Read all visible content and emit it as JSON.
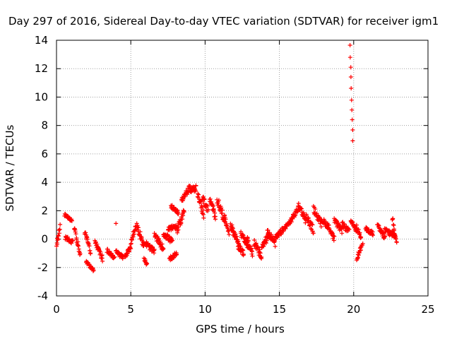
{
  "chart_data": {
    "type": "scatter",
    "title": "Day 297 of 2016, Sidereal Day-to-day VTEC variation (SDTVAR) for receiver igm1",
    "xlabel": "GPS time / hours",
    "ylabel": "SDTVAR / TECUs",
    "xlim": [
      0,
      25
    ],
    "ylim": [
      -4,
      14
    ],
    "xticks": [
      0,
      5,
      10,
      15,
      20,
      25
    ],
    "yticks": [
      -4,
      -2,
      0,
      2,
      4,
      6,
      8,
      10,
      12,
      14
    ],
    "grid": true,
    "marker": "plus",
    "color": "#ff0000",
    "series": [
      {
        "name": "SDTVAR",
        "segments": [
          {
            "t0": 0.0,
            "t1": 0.25,
            "v0": -0.4,
            "v1": 0.9,
            "spread": 0.4
          },
          {
            "t0": 0.55,
            "t1": 1.05,
            "v0": 1.7,
            "v1": 1.3,
            "spread": 0.2
          },
          {
            "t0": 0.6,
            "t1": 1.1,
            "v0": 0.1,
            "v1": -0.2,
            "spread": 0.3
          },
          {
            "t0": 1.2,
            "t1": 1.6,
            "v0": 0.8,
            "v1": -1.2,
            "spread": 0.4
          },
          {
            "t0": 1.9,
            "t1": 2.3,
            "v0": 0.6,
            "v1": -1.0,
            "spread": 0.4
          },
          {
            "t0": 2.0,
            "t1": 2.5,
            "v0": -1.6,
            "v1": -2.2,
            "spread": 0.2
          },
          {
            "t0": 2.6,
            "t1": 3.1,
            "v0": -0.2,
            "v1": -1.4,
            "spread": 0.4
          },
          {
            "t0": 3.4,
            "t1": 3.9,
            "v0": -0.8,
            "v1": -1.3,
            "spread": 0.3
          },
          {
            "t0": 4.0,
            "t1": 4.5,
            "v0": -0.9,
            "v1": -1.3,
            "spread": 0.3
          },
          {
            "t0": 4.6,
            "t1": 5.0,
            "v0": -1.2,
            "v1": -0.6,
            "spread": 0.3
          },
          {
            "t0": 5.0,
            "t1": 5.35,
            "v0": -0.2,
            "v1": 0.9,
            "spread": 0.4
          },
          {
            "t0": 5.4,
            "t1": 5.9,
            "v0": 1.0,
            "v1": -0.5,
            "spread": 0.5
          },
          {
            "t0": 5.9,
            "t1": 6.1,
            "v0": -1.4,
            "v1": -1.8,
            "spread": 0.2
          },
          {
            "t0": 6.0,
            "t1": 6.6,
            "v0": -0.3,
            "v1": -0.9,
            "spread": 0.4
          },
          {
            "t0": 6.6,
            "t1": 7.2,
            "v0": 0.3,
            "v1": -0.7,
            "spread": 0.4
          },
          {
            "t0": 7.2,
            "t1": 7.8,
            "v0": 0.4,
            "v1": -0.2,
            "spread": 0.4
          },
          {
            "t0": 7.5,
            "t1": 8.1,
            "v0": 0.7,
            "v1": 0.9,
            "spread": 0.3
          },
          {
            "t0": 7.6,
            "t1": 8.1,
            "v0": -1.4,
            "v1": -1.0,
            "spread": 0.3
          },
          {
            "t0": 7.7,
            "t1": 8.2,
            "v0": 2.3,
            "v1": 1.9,
            "spread": 0.3
          },
          {
            "t0": 8.1,
            "t1": 8.6,
            "v0": 0.5,
            "v1": 2.0,
            "spread": 0.5
          },
          {
            "t0": 8.4,
            "t1": 9.0,
            "v0": 2.8,
            "v1": 3.6,
            "spread": 0.5
          },
          {
            "t0": 9.0,
            "t1": 9.4,
            "v0": 3.4,
            "v1": 3.6,
            "spread": 0.4
          },
          {
            "t0": 9.5,
            "t1": 9.9,
            "v0": 3.2,
            "v1": 1.7,
            "spread": 0.5
          },
          {
            "t0": 9.8,
            "t1": 10.2,
            "v0": 3.0,
            "v1": 2.0,
            "spread": 0.5
          },
          {
            "t0": 10.3,
            "t1": 10.7,
            "v0": 2.8,
            "v1": 1.6,
            "spread": 0.5
          },
          {
            "t0": 10.8,
            "t1": 11.3,
            "v0": 2.8,
            "v1": 1.4,
            "spread": 0.6
          },
          {
            "t0": 11.3,
            "t1": 11.6,
            "v0": 1.5,
            "v1": 0.5,
            "spread": 0.4
          },
          {
            "t0": 11.7,
            "t1": 12.3,
            "v0": 1.0,
            "v1": -0.4,
            "spread": 0.5
          },
          {
            "t0": 12.2,
            "t1": 12.6,
            "v0": -0.5,
            "v1": -1.0,
            "spread": 0.4
          },
          {
            "t0": 12.4,
            "t1": 12.9,
            "v0": 0.4,
            "v1": -0.5,
            "spread": 0.4
          },
          {
            "t0": 12.8,
            "t1": 13.2,
            "v0": 0.0,
            "v1": -1.0,
            "spread": 0.5
          },
          {
            "t0": 13.3,
            "t1": 13.8,
            "v0": -0.2,
            "v1": -1.3,
            "spread": 0.5
          },
          {
            "t0": 13.8,
            "t1": 14.3,
            "v0": -0.6,
            "v1": 0.3,
            "spread": 0.5
          },
          {
            "t0": 14.2,
            "t1": 14.7,
            "v0": 0.6,
            "v1": -0.3,
            "spread": 0.5
          },
          {
            "t0": 14.7,
            "t1": 15.2,
            "v0": 0.0,
            "v1": 0.6,
            "spread": 0.4
          },
          {
            "t0": 15.2,
            "t1": 15.7,
            "v0": 0.6,
            "v1": 1.2,
            "spread": 0.3
          },
          {
            "t0": 15.7,
            "t1": 16.3,
            "v0": 1.2,
            "v1": 2.2,
            "spread": 0.4
          },
          {
            "t0": 16.3,
            "t1": 16.8,
            "v0": 2.4,
            "v1": 1.3,
            "spread": 0.5
          },
          {
            "t0": 16.8,
            "t1": 17.3,
            "v0": 1.6,
            "v1": 0.6,
            "spread": 0.5
          },
          {
            "t0": 17.3,
            "t1": 17.8,
            "v0": 2.1,
            "v1": 1.1,
            "spread": 0.5
          },
          {
            "t0": 17.8,
            "t1": 18.3,
            "v0": 1.4,
            "v1": 0.9,
            "spread": 0.4
          },
          {
            "t0": 18.3,
            "t1": 18.7,
            "v0": 0.9,
            "v1": 0.0,
            "spread": 0.4
          },
          {
            "t0": 18.7,
            "t1": 19.2,
            "v0": 1.3,
            "v1": 0.6,
            "spread": 0.4
          },
          {
            "t0": 19.2,
            "t1": 19.7,
            "v0": 1.1,
            "v1": 0.5,
            "spread": 0.4
          },
          {
            "t0": 19.8,
            "t1": 20.2,
            "v0": 1.3,
            "v1": 0.6,
            "spread": 0.3
          },
          {
            "t0": 20.2,
            "t1": 20.5,
            "v0": 0.8,
            "v1": 0.2,
            "spread": 0.4
          },
          {
            "t0": 20.2,
            "t1": 20.6,
            "v0": -1.4,
            "v1": -0.3,
            "spread": 0.3
          },
          {
            "t0": 20.8,
            "t1": 21.3,
            "v0": 0.7,
            "v1": 0.4,
            "spread": 0.3
          },
          {
            "t0": 21.6,
            "t1": 22.1,
            "v0": 0.9,
            "v1": 0.1,
            "spread": 0.4
          },
          {
            "t0": 22.1,
            "t1": 22.8,
            "v0": 0.6,
            "v1": 0.3,
            "spread": 0.5
          },
          {
            "t0": 22.6,
            "t1": 22.9,
            "v0": 1.5,
            "v1": -0.4,
            "spread": 0.4
          },
          {
            "t0": 19.75,
            "t1": 19.95,
            "v0": 13.6,
            "v1": 6.9,
            "spread": 0.2
          }
        ],
        "points": [
          {
            "x": 4.0,
            "y": 1.1
          }
        ]
      }
    ]
  }
}
